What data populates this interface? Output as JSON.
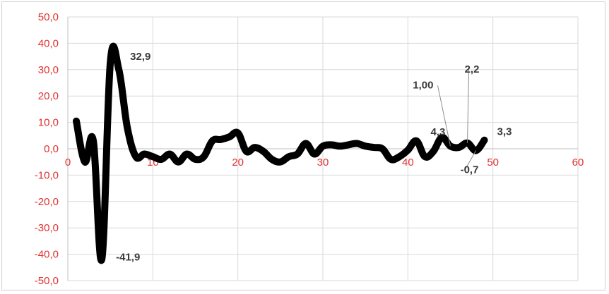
{
  "chart_data": {
    "type": "line",
    "title": "",
    "xlabel": "",
    "ylabel": "",
    "xlim": [
      0,
      60
    ],
    "ylim": [
      -50,
      50
    ],
    "x_ticks": [
      "0",
      "10",
      "20",
      "30",
      "40",
      "50",
      "60"
    ],
    "y_ticks": [
      "50,0",
      "40,0",
      "30,0",
      "20,0",
      "10,0",
      "0,0",
      "-10,0",
      "-20,0",
      "-30,0",
      "-40,0",
      "-50,0"
    ],
    "grid": true,
    "legend": "none",
    "colors": {
      "line": "#000000",
      "tick_labels": "#e0312f",
      "grid": "#d9d9d9",
      "data_labels": "#3a3a3a"
    },
    "series": [
      {
        "x": [
          1,
          2,
          3,
          4,
          5,
          6,
          7,
          8,
          9,
          10,
          11,
          12,
          13,
          14,
          15,
          16,
          17,
          18,
          19,
          20,
          21,
          22,
          23,
          24,
          25,
          26,
          27,
          28,
          29,
          30,
          31,
          32,
          33,
          34,
          35,
          36,
          37,
          38,
          39,
          40,
          41,
          42,
          43,
          44,
          45,
          46,
          47,
          48,
          49
        ],
        "values": [
          10.5,
          -5,
          3,
          -41.9,
          32.9,
          30,
          8,
          -3,
          -2,
          -3,
          -4,
          -2,
          -5,
          -2,
          -4,
          -3,
          3,
          3.5,
          4.5,
          6,
          -1,
          0.5,
          -1,
          -4,
          -5,
          -3,
          -2,
          2,
          -2,
          1,
          1.5,
          1,
          1.5,
          2,
          1,
          0.5,
          0,
          -4,
          -3,
          -0.5,
          3,
          -3,
          -1,
          4.3,
          1,
          0.5,
          2.2,
          -0.7,
          3.3
        ]
      }
    ],
    "data_labels": [
      {
        "text": "32,9",
        "x": 5,
        "y": 32.9
      },
      {
        "text": "-41,9",
        "x": 4,
        "y": -41.9
      },
      {
        "text": "1,00",
        "x": 45,
        "y": 1
      },
      {
        "text": "2,2",
        "x": 47,
        "y": 2.2
      },
      {
        "text": "4,3",
        "x": 44,
        "y": 4.3
      },
      {
        "text": "-0,7",
        "x": 48,
        "y": -0.7
      },
      {
        "text": "3,3",
        "x": 49,
        "y": 3.3
      }
    ]
  }
}
